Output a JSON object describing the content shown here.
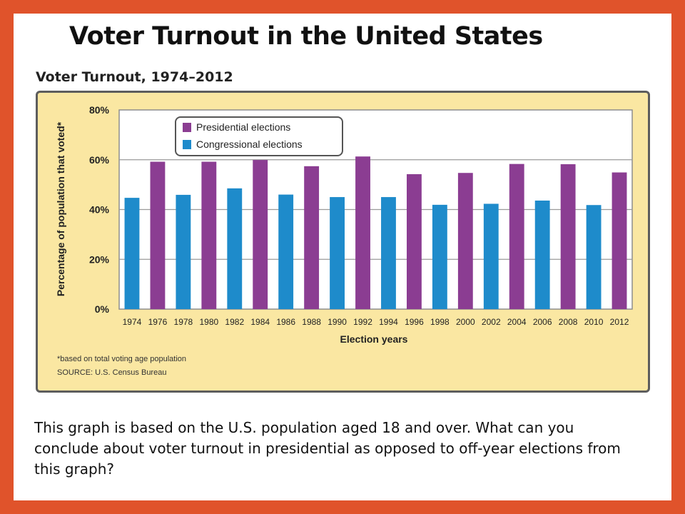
{
  "slide": {
    "title": "Voter Turnout in the United States",
    "caption": "This graph is based on the U.S. population aged 18 and over. What can you conclude about voter turnout in presidential as opposed to off-year elections from this graph?"
  },
  "chart_data": {
    "type": "bar",
    "title": "Voter Turnout, 1974–2012",
    "xlabel": "Election years",
    "ylabel": "Percentage of population that voted*",
    "ylim": [
      0,
      80
    ],
    "yticks": [
      "0%",
      "20%",
      "40%",
      "60%",
      "80%"
    ],
    "grid": true,
    "legend_position": "top-left",
    "categories": [
      "1974",
      "1976",
      "1978",
      "1980",
      "1982",
      "1984",
      "1986",
      "1988",
      "1990",
      "1992",
      "1994",
      "1996",
      "1998",
      "2000",
      "2002",
      "2004",
      "2006",
      "2008",
      "2010",
      "2012"
    ],
    "values": [
      44.7,
      59.2,
      45.9,
      59.2,
      48.5,
      59.9,
      46.0,
      57.4,
      45.0,
      61.3,
      45.0,
      54.2,
      41.9,
      54.7,
      42.3,
      58.3,
      43.6,
      58.2,
      41.8,
      54.9
    ],
    "series": [
      {
        "name": "Presidential elections",
        "color": "#8b3d92"
      },
      {
        "name": "Congressional elections",
        "color": "#1e8bcb"
      }
    ],
    "footnote": "*based on total voting age population",
    "source": "SOURCE: U.S. Census Bureau"
  }
}
